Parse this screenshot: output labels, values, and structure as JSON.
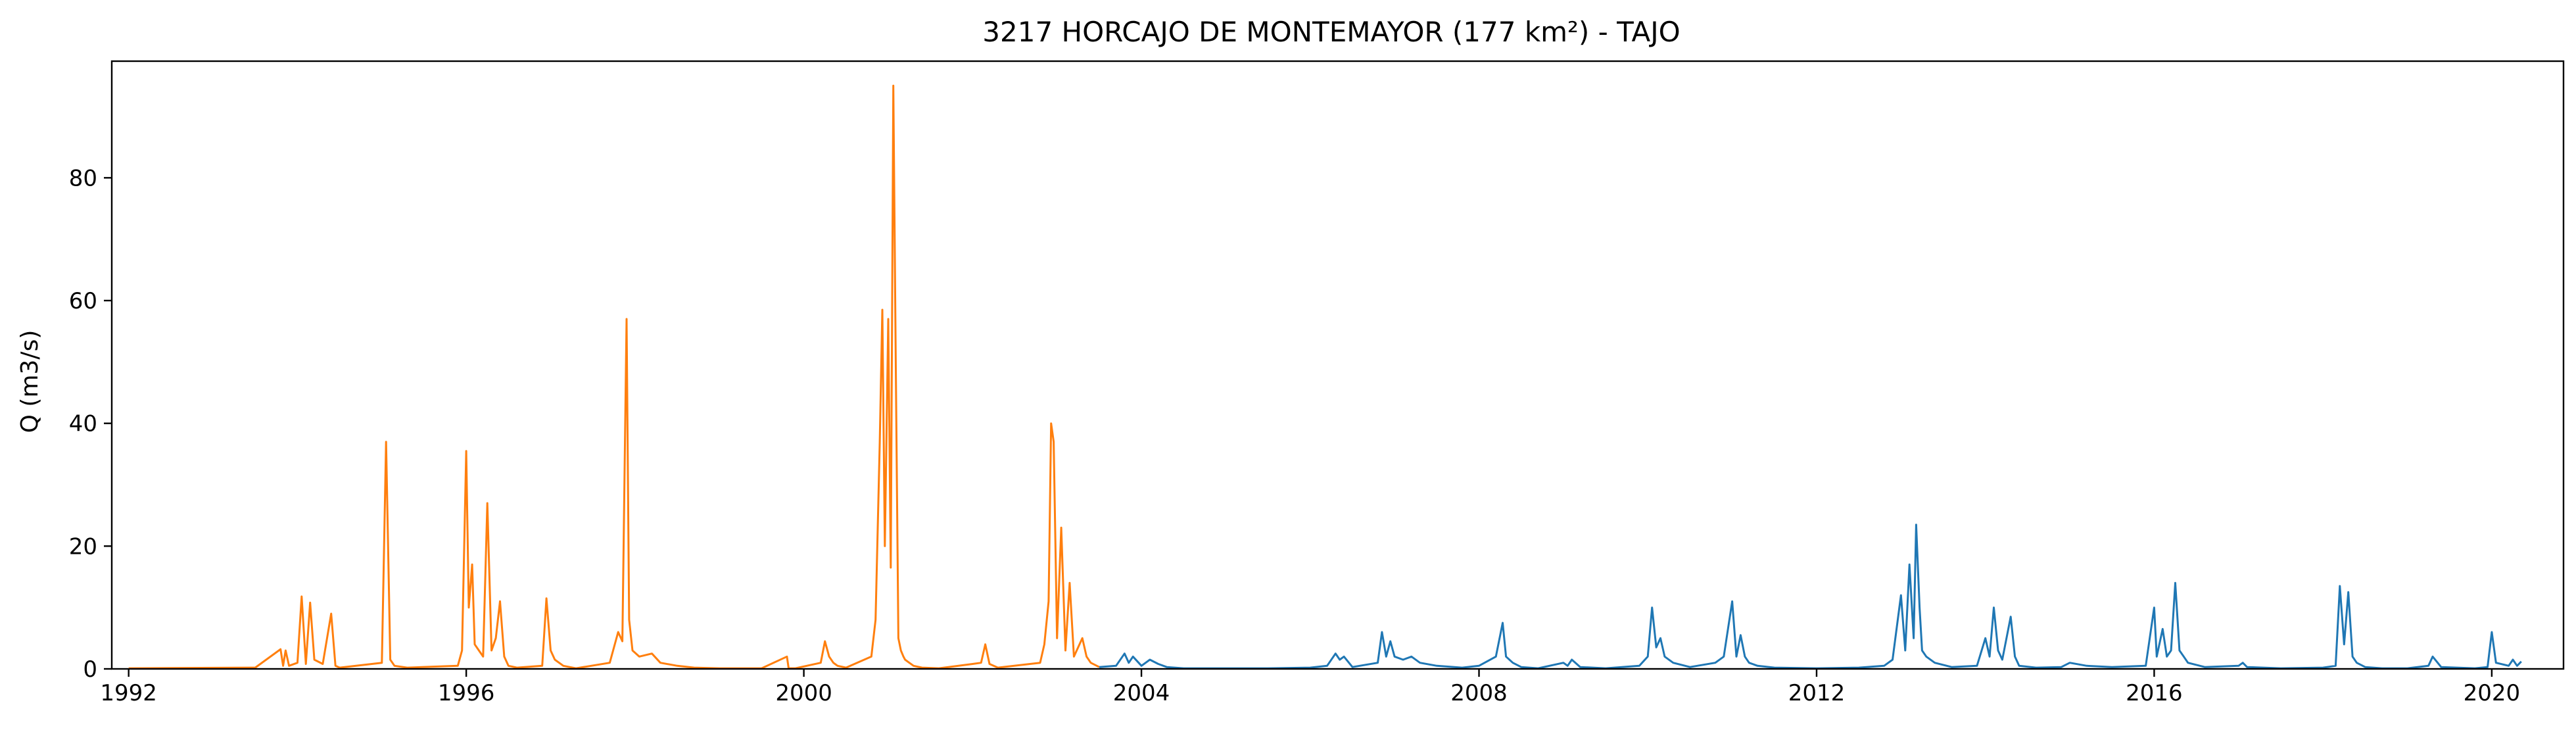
{
  "chart_data": {
    "type": "line",
    "title": "3217 HORCAJO DE MONTEMAYOR (177 km²) - TAJO",
    "xlabel": "",
    "ylabel": "Q (m3/s)",
    "xlim": [
      1991.8,
      2020.85
    ],
    "ylim": [
      0,
      99
    ],
    "x_ticks": [
      1992,
      1996,
      2000,
      2004,
      2008,
      2012,
      2016,
      2020
    ],
    "x_tick_labels": [
      "1992",
      "1996",
      "2000",
      "2004",
      "2008",
      "2012",
      "2016",
      "2020"
    ],
    "y_ticks": [
      0,
      20,
      40,
      60,
      80
    ],
    "y_tick_labels": [
      "0",
      "20",
      "40",
      "60",
      "80"
    ],
    "grid": false,
    "legend": "none",
    "series": [
      {
        "color": "#ff7f0e",
        "x": [
          1992.0,
          1993.5,
          1993.8,
          1993.83,
          1993.86,
          1993.9,
          1994.0,
          1994.05,
          1994.1,
          1994.15,
          1994.2,
          1994.3,
          1994.4,
          1994.45,
          1994.5,
          1995.0,
          1995.05,
          1995.1,
          1995.15,
          1995.3,
          1995.9,
          1995.95,
          1996.0,
          1996.03,
          1996.07,
          1996.1,
          1996.15,
          1996.2,
          1996.25,
          1996.3,
          1996.35,
          1996.4,
          1996.45,
          1996.5,
          1996.6,
          1996.9,
          1996.95,
          1997.0,
          1997.05,
          1997.15,
          1997.3,
          1997.7,
          1997.8,
          1997.85,
          1997.9,
          1997.93,
          1997.97,
          1998.05,
          1998.2,
          1998.3,
          1998.5,
          1998.7,
          1999.0,
          1999.5,
          1999.8,
          1999.82,
          1999.9,
          2000.2,
          2000.25,
          2000.3,
          2000.35,
          2000.4,
          2000.5,
          2000.8,
          2000.85,
          2000.9,
          2000.93,
          2000.96,
          2001.0,
          2001.03,
          2001.06,
          2001.09,
          2001.12,
          2001.15,
          2001.18,
          2001.2,
          2001.25,
          2001.3,
          2001.4,
          2001.6,
          2002.0,
          2002.1,
          2002.15,
          2002.2,
          2002.3,
          2002.8,
          2002.85,
          2002.9,
          2002.93,
          2002.96,
          2003.0,
          2003.05,
          2003.1,
          2003.15,
          2003.2,
          2003.25,
          2003.3,
          2003.35,
          2003.4,
          2003.5
        ],
        "values": [
          0.1,
          0.2,
          3.2,
          0.5,
          3.0,
          0.5,
          1.0,
          11.8,
          0.8,
          10.8,
          1.5,
          0.8,
          9.0,
          0.5,
          0.2,
          1.0,
          37.0,
          1.5,
          0.5,
          0.2,
          0.5,
          3.0,
          35.5,
          10.0,
          17.0,
          4.0,
          3.0,
          2.0,
          27.0,
          3.0,
          5.0,
          11.0,
          2.0,
          0.5,
          0.2,
          0.5,
          11.5,
          3.0,
          1.5,
          0.5,
          0.1,
          1.0,
          6.0,
          4.5,
          57.0,
          8.0,
          3.0,
          2.0,
          2.5,
          1.0,
          0.5,
          0.2,
          0.1,
          0.1,
          2.0,
          0.1,
          0.1,
          1.0,
          4.5,
          2.0,
          1.0,
          0.5,
          0.2,
          2.0,
          8.0,
          37.0,
          58.5,
          20.0,
          57.0,
          16.5,
          95.0,
          49.0,
          5.0,
          3.0,
          2.0,
          1.5,
          1.0,
          0.5,
          0.2,
          0.1,
          0.8,
          1.0,
          4.0,
          0.8,
          0.2,
          1.0,
          4.0,
          11.0,
          40.0,
          37.0,
          5.0,
          23.0,
          3.0,
          14.0,
          2.0,
          3.5,
          5.0,
          2.0,
          1.0,
          0.3
        ]
      },
      {
        "color": "#1f77b4",
        "x": [
          2003.5,
          2003.7,
          2003.8,
          2003.85,
          2003.9,
          2004.0,
          2004.1,
          2004.2,
          2004.3,
          2004.5,
          2005.0,
          2005.5,
          2006.0,
          2006.2,
          2006.3,
          2006.35,
          2006.4,
          2006.5,
          2006.8,
          2006.85,
          2006.9,
          2006.95,
          2007.0,
          2007.1,
          2007.2,
          2007.3,
          2007.5,
          2007.8,
          2008.0,
          2008.2,
          2008.28,
          2008.32,
          2008.4,
          2008.5,
          2008.7,
          2009.0,
          2009.05,
          2009.1,
          2009.2,
          2009.5,
          2009.9,
          2010.0,
          2010.05,
          2010.1,
          2010.15,
          2010.2,
          2010.3,
          2010.5,
          2010.8,
          2010.9,
          2011.0,
          2011.05,
          2011.1,
          2011.15,
          2011.2,
          2011.3,
          2011.5,
          2012.0,
          2012.5,
          2012.8,
          2012.9,
          2013.0,
          2013.05,
          2013.1,
          2013.15,
          2013.18,
          2013.22,
          2013.25,
          2013.3,
          2013.4,
          2013.6,
          2013.9,
          2014.0,
          2014.05,
          2014.1,
          2014.15,
          2014.2,
          2014.3,
          2014.35,
          2014.4,
          2014.6,
          2014.9,
          2015.0,
          2015.2,
          2015.5,
          2015.9,
          2016.0,
          2016.03,
          2016.1,
          2016.15,
          2016.2,
          2016.25,
          2016.3,
          2016.35,
          2016.4,
          2016.6,
          2017.0,
          2017.05,
          2017.1,
          2017.5,
          2018.0,
          2018.15,
          2018.2,
          2018.25,
          2018.3,
          2018.35,
          2018.4,
          2018.5,
          2018.7,
          2019.0,
          2019.25,
          2019.3,
          2019.4,
          2019.8,
          2019.95,
          2020.0,
          2020.05,
          2020.2,
          2020.25,
          2020.3,
          2020.35
        ],
        "values": [
          0.3,
          0.5,
          2.5,
          1.0,
          2.0,
          0.5,
          1.5,
          0.8,
          0.3,
          0.1,
          0.1,
          0.1,
          0.2,
          0.5,
          2.5,
          1.5,
          2.0,
          0.3,
          1.0,
          6.0,
          2.0,
          4.5,
          2.0,
          1.5,
          2.0,
          1.0,
          0.5,
          0.2,
          0.5,
          2.0,
          7.5,
          2.0,
          1.0,
          0.3,
          0.1,
          1.0,
          0.5,
          1.5,
          0.3,
          0.1,
          0.5,
          2.0,
          10.0,
          3.5,
          5.0,
          2.0,
          1.0,
          0.3,
          1.0,
          2.0,
          11.0,
          2.0,
          5.5,
          2.0,
          1.0,
          0.5,
          0.2,
          0.1,
          0.2,
          0.5,
          1.5,
          12.0,
          3.0,
          17.0,
          5.0,
          23.5,
          10.0,
          3.0,
          2.0,
          1.0,
          0.3,
          0.5,
          5.0,
          2.0,
          10.0,
          3.0,
          1.5,
          8.5,
          2.0,
          0.5,
          0.2,
          0.3,
          1.0,
          0.5,
          0.3,
          0.5,
          10.0,
          2.0,
          6.5,
          2.0,
          3.0,
          14.0,
          3.0,
          2.0,
          1.0,
          0.3,
          0.5,
          1.0,
          0.3,
          0.1,
          0.2,
          0.5,
          13.5,
          4.0,
          12.5,
          2.0,
          1.0,
          0.3,
          0.1,
          0.1,
          0.5,
          2.0,
          0.3,
          0.1,
          0.3,
          6.0,
          1.0,
          0.5,
          1.5,
          0.5,
          1.2
        ]
      }
    ]
  }
}
